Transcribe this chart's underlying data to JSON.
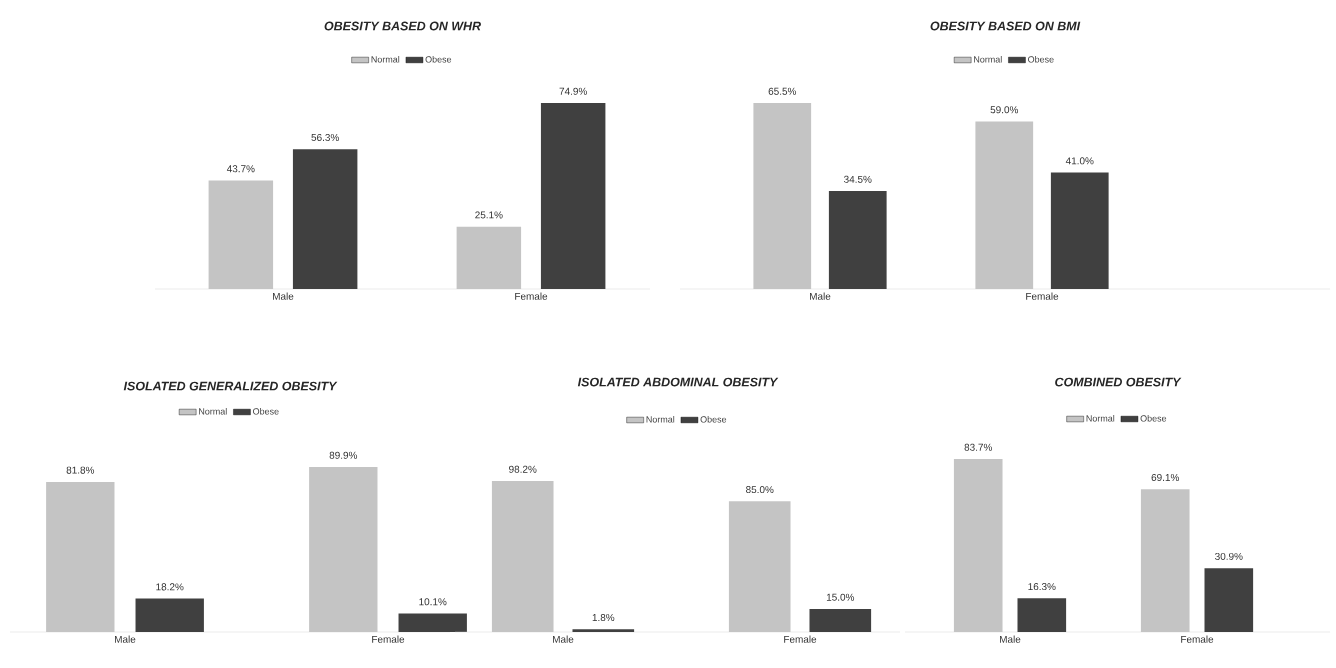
{
  "chart_data": [
    {
      "type": "bar",
      "title": "OBESITY BASED ON WHR",
      "categories": [
        "Male",
        "Female"
      ],
      "legend": "top",
      "series": [
        {
          "name": "Normal",
          "color": "#c4c4c4",
          "values": [
            43.7,
            25.1
          ],
          "value_labels": [
            "43.7%",
            "25.1%"
          ]
        },
        {
          "name": "Obese",
          "color": "#404040",
          "values": [
            56.3,
            74.9
          ],
          "value_labels": [
            "56.3%",
            "74.9%"
          ]
        }
      ]
    },
    {
      "type": "bar",
      "title": "OBESITY BASED ON BMI",
      "categories": [
        "Male",
        "Female"
      ],
      "legend": "top",
      "series": [
        {
          "name": "Normal",
          "color": "#c4c4c4",
          "values": [
            65.5,
            59.0
          ],
          "value_labels": [
            "65.5%",
            "59.0%"
          ]
        },
        {
          "name": "Obese",
          "color": "#404040",
          "values": [
            34.5,
            41.0
          ],
          "value_labels": [
            "34.5%",
            "41.0%"
          ]
        }
      ]
    },
    {
      "type": "bar",
      "title": "ISOLATED GENERALIZED OBESITY",
      "categories": [
        "Male",
        "Female"
      ],
      "legend": "top",
      "series": [
        {
          "name": "Normal",
          "color": "#c4c4c4",
          "values": [
            81.8,
            89.9
          ],
          "value_labels": [
            "81.8%",
            "89.9%"
          ]
        },
        {
          "name": "Obese",
          "color": "#404040",
          "values": [
            18.2,
            10.1
          ],
          "value_labels": [
            "18.2%",
            "10.1%"
          ]
        }
      ]
    },
    {
      "type": "bar",
      "title": "ISOLATED ABDOMINAL OBESITY",
      "categories": [
        "Male",
        "Female"
      ],
      "legend": "top",
      "series": [
        {
          "name": "Normal",
          "color": "#c4c4c4",
          "values": [
            98.2,
            85.0
          ],
          "value_labels": [
            "98.2%",
            "85.0%"
          ]
        },
        {
          "name": "Obese",
          "color": "#404040",
          "values": [
            1.8,
            15.0
          ],
          "value_labels": [
            "1.8%",
            "15.0%"
          ]
        }
      ]
    },
    {
      "type": "bar",
      "title": "COMBINED OBESITY",
      "categories": [
        "Male",
        "Female"
      ],
      "legend": "top",
      "series": [
        {
          "name": "Normal",
          "color": "#c4c4c4",
          "values": [
            83.7,
            69.1
          ],
          "value_labels": [
            "83.7%",
            "69.1%"
          ]
        },
        {
          "name": "Obese",
          "color": "#404040",
          "values": [
            16.3,
            30.9
          ],
          "value_labels": [
            "16.3%",
            "30.9%"
          ]
        }
      ]
    }
  ]
}
